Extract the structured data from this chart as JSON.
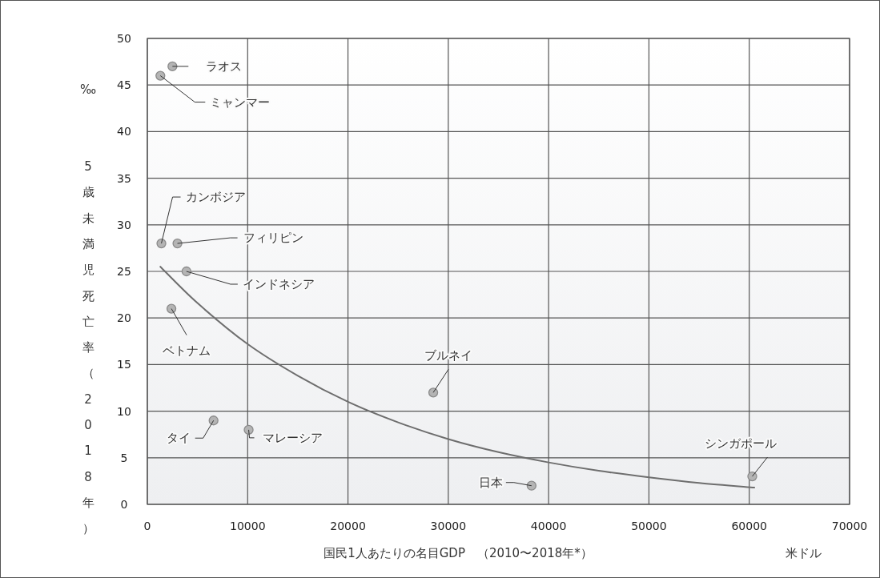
{
  "chart_data": {
    "type": "scatter",
    "xlabel": "国民1人あたりの名目GDP　（2010〜2018年*）",
    "ylabel": "5歳未満児死亡率（2018年）",
    "xlim": [
      0,
      70000
    ],
    "ylim": [
      0,
      50
    ],
    "xticks": [
      0,
      10000,
      20000,
      30000,
      40000,
      50000,
      60000,
      70000
    ],
    "yticks": [
      0,
      5,
      10,
      15,
      20,
      25,
      30,
      35,
      40,
      45,
      50
    ],
    "grid": true,
    "marker": "circle",
    "series": [
      {
        "type": "scatter",
        "color": "#b4b4b4",
        "x": [
          2500,
          1300,
          1400,
          3000,
          3900,
          2400,
          6600,
          10100,
          28500,
          38300,
          60300
        ],
        "values": [
          47,
          46,
          28,
          28,
          25,
          21,
          9,
          8,
          12,
          2,
          3
        ]
      },
      {
        "type": "line",
        "marker": "none",
        "color": "#6e6e6e",
        "x": [
          1300,
          5000,
          10000,
          15000,
          20000,
          25000,
          30000,
          35000,
          40000,
          45000,
          50000,
          55000,
          60500
        ],
        "values": [
          25.5,
          21.6,
          17.2,
          13.8,
          11.0,
          8.8,
          7.0,
          5.6,
          4.5,
          3.6,
          2.9,
          2.3,
          1.8
        ]
      }
    ],
    "annotations": [
      {
        "text": "ラオス",
        "x": 2500,
        "y": 47
      },
      {
        "text": "ミャンマー",
        "x": 1300,
        "y": 46
      },
      {
        "text": "カンボジア",
        "x": 1400,
        "y": 28
      },
      {
        "text": "フィリピン",
        "x": 3000,
        "y": 28
      },
      {
        "text": "インドネシア",
        "x": 3900,
        "y": 25
      },
      {
        "text": "ベトナム",
        "x": 2400,
        "y": 21
      },
      {
        "text": "タイ",
        "x": 6600,
        "y": 9
      },
      {
        "text": "マレーシア",
        "x": 10100,
        "y": 8
      },
      {
        "text": "ブルネイ",
        "x": 28500,
        "y": 12
      },
      {
        "text": "日本",
        "x": 38300,
        "y": 2
      },
      {
        "text": "シンガポール",
        "x": 60300,
        "y": 3
      },
      "‰",
      "米ドル"
    ]
  }
}
